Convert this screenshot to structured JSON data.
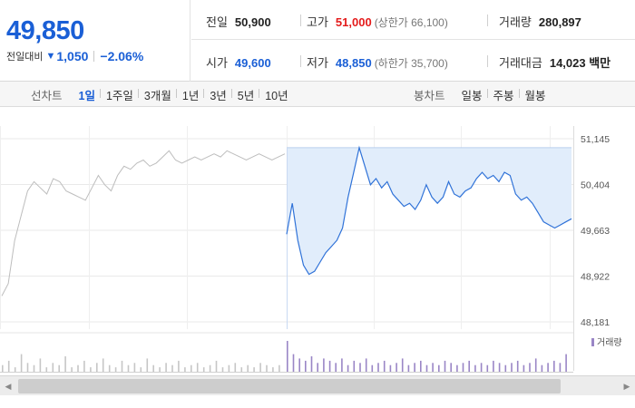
{
  "quote": {
    "current_price": "49,850",
    "change_label": "전일대비",
    "change_arrow": "▼",
    "change_value": "1,050",
    "change_pct": "−2.06%"
  },
  "stats": {
    "prev_close_label": "전일",
    "prev_close": "50,900",
    "high_label": "고가",
    "high": "51,000",
    "upper_limit": "(상한가 66,100)",
    "volume_label": "거래량",
    "volume": "280,897",
    "open_label": "시가",
    "open": "49,600",
    "low_label": "저가",
    "low": "48,850",
    "lower_limit": "(하한가 35,700)",
    "amount_label": "거래대금",
    "amount": "14,023 백만"
  },
  "tabs": {
    "line_label": "선차트",
    "line_tabs": [
      "1일",
      "1주일",
      "3개월",
      "1년",
      "3년",
      "5년",
      "10년"
    ],
    "line_active": 0,
    "candle_label": "봉차트",
    "candle_tabs": [
      "일봉",
      "주봉",
      "월봉"
    ]
  },
  "colors": {
    "accent_blue": "#1a5fd6",
    "up_red": "#e41b1b",
    "line_blue": "#2f72d8",
    "fill_blue": "#e1edfb",
    "prev_gray": "#bdbdbd",
    "volume_purple": "#9a86c6"
  },
  "scrollbar": {
    "left_icon": "triangle-left-icon",
    "right_icon": "triangle-right-icon"
  },
  "chart_data": {
    "type": "line",
    "y_ticks": [
      "51,145",
      "50,404",
      "49,663",
      "48,922",
      "48,181"
    ],
    "ylim": [
      48181,
      51145
    ],
    "grid": true,
    "prev_day_series": [
      [
        0,
        48600
      ],
      [
        1,
        48800
      ],
      [
        2,
        49500
      ],
      [
        3,
        49900
      ],
      [
        4,
        50300
      ],
      [
        5,
        50450
      ],
      [
        6,
        50350
      ],
      [
        7,
        50250
      ],
      [
        8,
        50500
      ],
      [
        9,
        50450
      ],
      [
        10,
        50300
      ],
      [
        11,
        50250
      ],
      [
        12,
        50200
      ],
      [
        13,
        50150
      ],
      [
        14,
        50350
      ],
      [
        15,
        50550
      ],
      [
        16,
        50400
      ],
      [
        17,
        50300
      ],
      [
        18,
        50550
      ],
      [
        19,
        50700
      ],
      [
        20,
        50650
      ],
      [
        21,
        50750
      ],
      [
        22,
        50800
      ],
      [
        23,
        50700
      ],
      [
        24,
        50750
      ],
      [
        25,
        50850
      ],
      [
        26,
        50950
      ],
      [
        27,
        50800
      ],
      [
        28,
        50750
      ],
      [
        29,
        50800
      ],
      [
        30,
        50850
      ],
      [
        31,
        50800
      ],
      [
        32,
        50850
      ],
      [
        33,
        50900
      ],
      [
        34,
        50850
      ],
      [
        35,
        50950
      ],
      [
        36,
        50900
      ],
      [
        37,
        50850
      ],
      [
        38,
        50800
      ],
      [
        39,
        50850
      ],
      [
        40,
        50900
      ],
      [
        41,
        50850
      ],
      [
        42,
        50800
      ],
      [
        43,
        50850
      ],
      [
        44,
        50900
      ]
    ],
    "today_series": [
      [
        0,
        49600
      ],
      [
        1,
        50100
      ],
      [
        2,
        49500
      ],
      [
        3,
        49100
      ],
      [
        4,
        48950
      ],
      [
        5,
        49000
      ],
      [
        6,
        49150
      ],
      [
        7,
        49300
      ],
      [
        8,
        49400
      ],
      [
        9,
        49500
      ],
      [
        10,
        49700
      ],
      [
        11,
        50200
      ],
      [
        12,
        50600
      ],
      [
        13,
        51000
      ],
      [
        14,
        50700
      ],
      [
        15,
        50400
      ],
      [
        16,
        50500
      ],
      [
        17,
        50350
      ],
      [
        18,
        50450
      ],
      [
        19,
        50250
      ],
      [
        20,
        50150
      ],
      [
        21,
        50050
      ],
      [
        22,
        50100
      ],
      [
        23,
        50000
      ],
      [
        24,
        50150
      ],
      [
        25,
        50400
      ],
      [
        26,
        50200
      ],
      [
        27,
        50100
      ],
      [
        28,
        50200
      ],
      [
        29,
        50450
      ],
      [
        30,
        50250
      ],
      [
        31,
        50200
      ],
      [
        32,
        50300
      ],
      [
        33,
        50350
      ],
      [
        34,
        50500
      ],
      [
        35,
        50600
      ],
      [
        36,
        50500
      ],
      [
        37,
        50550
      ],
      [
        38,
        50450
      ],
      [
        39,
        50600
      ],
      [
        40,
        50550
      ],
      [
        41,
        50250
      ],
      [
        42,
        50150
      ],
      [
        43,
        50200
      ],
      [
        44,
        50100
      ],
      [
        45,
        49950
      ],
      [
        46,
        49800
      ],
      [
        47,
        49750
      ],
      [
        48,
        49700
      ],
      [
        49,
        49750
      ],
      [
        50,
        49800
      ],
      [
        51,
        49850
      ]
    ],
    "volume_label": "거래량",
    "volume_bars": [
      3,
      5,
      2,
      8,
      4,
      3,
      6,
      2,
      4,
      3,
      7,
      2,
      3,
      5,
      2,
      4,
      6,
      3,
      2,
      5,
      3,
      4,
      2,
      6,
      3,
      2,
      4,
      3,
      5,
      2,
      3,
      4,
      2,
      3,
      5,
      2,
      3,
      4,
      2,
      3,
      2,
      4,
      3,
      2,
      3,
      14,
      8,
      6,
      5,
      7,
      4,
      6,
      5,
      4,
      6,
      3,
      5,
      4,
      6,
      3,
      4,
      5,
      3,
      4,
      6,
      3,
      4,
      5,
      3,
      4,
      3,
      5,
      4,
      3,
      4,
      5,
      3,
      4,
      3,
      5,
      4,
      3,
      4,
      5,
      3,
      4,
      6,
      3,
      4,
      5,
      4,
      8
    ]
  }
}
